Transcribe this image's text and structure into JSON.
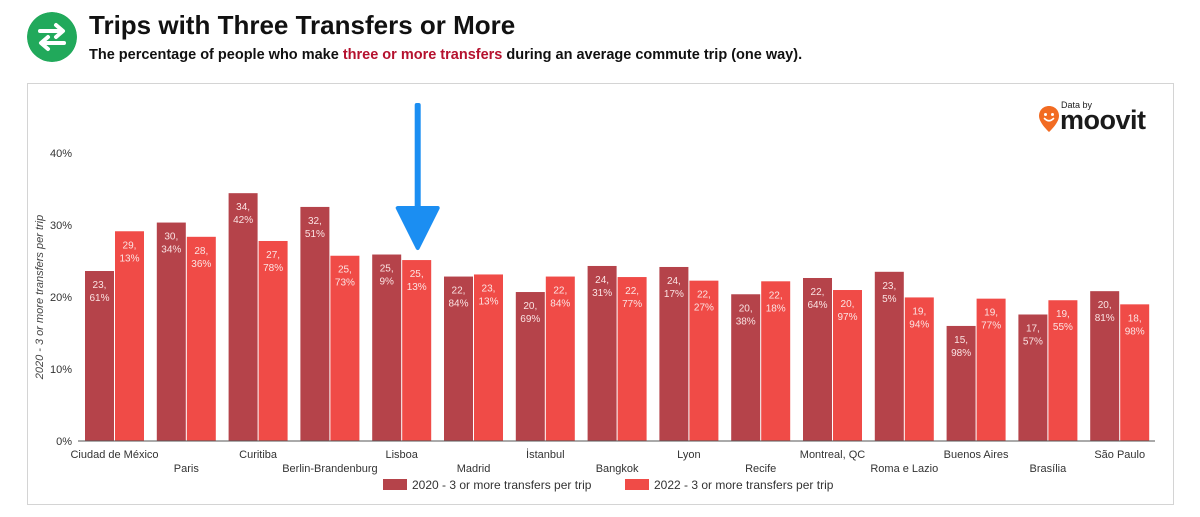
{
  "header": {
    "icon": "swap-arrows-icon",
    "title": "Trips with Three Transfers or More",
    "subtitle_before": "The percentage of people who make ",
    "subtitle_highlight": "three or more transfers",
    "subtitle_after": " during an average commute trip (one way)."
  },
  "brand": {
    "data_by": "Data by",
    "name": "moovit",
    "icon": "moovit-pin-icon"
  },
  "colors": {
    "s2020": "#b5434a",
    "s2022": "#f04b47",
    "highlight": "#b5112e",
    "arrow": "#1b8ef2",
    "icon_bg": "#21a95b"
  },
  "chart_data": {
    "type": "bar",
    "title": "Trips with Three Transfers or More",
    "xlabel": "",
    "ylabel": "2020 - 3 or more transfers per trip",
    "ylim": [
      0,
      40
    ],
    "yticks": [
      0,
      10,
      20,
      30,
      40
    ],
    "ytick_labels": [
      "0%",
      "10%",
      "20%",
      "30%",
      "40%"
    ],
    "grid": false,
    "legend_position": "bottom",
    "categories": [
      "Ciudad de México",
      "Paris",
      "Curitiba",
      "Berlin-Brandenburg",
      "Lisboa",
      "Madrid",
      "İstanbul",
      "Bangkok",
      "Lyon",
      "Recife",
      "Montreal, QC",
      "Roma e Lazio",
      "Buenos Aires",
      "Brasília",
      "São Paulo"
    ],
    "series": [
      {
        "name": "2020 - 3 or more transfers per trip",
        "values": [
          23.61,
          30.34,
          34.42,
          32.51,
          25.9,
          22.84,
          20.69,
          24.31,
          24.17,
          20.38,
          22.64,
          23.5,
          15.98,
          17.57,
          20.81
        ],
        "labels": [
          [
            "23,",
            "61%"
          ],
          [
            "30,",
            "34%"
          ],
          [
            "34,",
            "42%"
          ],
          [
            "32,",
            "51%"
          ],
          [
            "25,",
            "9%"
          ],
          [
            "22,",
            "84%"
          ],
          [
            "20,",
            "69%"
          ],
          [
            "24,",
            "31%"
          ],
          [
            "24,",
            "17%"
          ],
          [
            "20,",
            "38%"
          ],
          [
            "22,",
            "64%"
          ],
          [
            "23,",
            "5%"
          ],
          [
            "15,",
            "98%"
          ],
          [
            "17,",
            "57%"
          ],
          [
            "20,",
            "81%"
          ]
        ]
      },
      {
        "name": "2022 - 3 or more transfers per trip",
        "values": [
          29.13,
          28.36,
          27.78,
          25.73,
          25.13,
          23.13,
          22.84,
          22.77,
          22.27,
          22.18,
          20.97,
          19.94,
          19.77,
          19.55,
          18.98
        ],
        "labels": [
          [
            "29,",
            "13%"
          ],
          [
            "28,",
            "36%"
          ],
          [
            "27,",
            "78%"
          ],
          [
            "25,",
            "73%"
          ],
          [
            "25,",
            "13%"
          ],
          [
            "23,",
            "13%"
          ],
          [
            "22,",
            "84%"
          ],
          [
            "22,",
            "77%"
          ],
          [
            "22,",
            "27%"
          ],
          [
            "22,",
            "18%"
          ],
          [
            "20,",
            "97%"
          ],
          [
            "19,",
            "94%"
          ],
          [
            "19,",
            "77%"
          ],
          [
            "19,",
            "55%"
          ],
          [
            "18,",
            "98%"
          ]
        ]
      }
    ],
    "annotations": [
      {
        "type": "arrow",
        "points_to": "Lisboa",
        "direction": "down"
      }
    ]
  }
}
